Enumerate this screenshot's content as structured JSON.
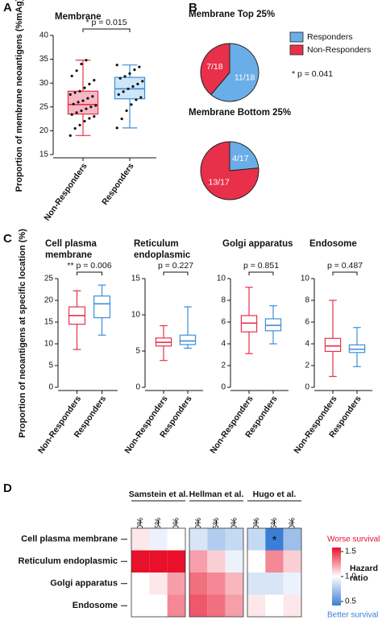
{
  "panel_labels": [
    "A",
    "B",
    "C",
    "D"
  ],
  "chart_data": [
    {
      "type": "box",
      "title": "Membrane",
      "ylabel": "Proportion of membrane neoantigens (%mAg)",
      "categories": [
        "Non-Responders",
        "Responders"
      ],
      "colors": [
        "#e8304a",
        "#3d8fd9"
      ],
      "box_fill": [
        "#f6b8c2",
        "#cfe5f8"
      ],
      "boxes": [
        {
          "min": 19,
          "q1": 23.5,
          "median": 25.5,
          "q3": 28.3,
          "max": 34.8
        },
        {
          "min": 20.6,
          "q1": 26.7,
          "median": 28.8,
          "q3": 31.2,
          "max": 33.8
        }
      ],
      "points": [
        [
          19,
          20.5,
          21.2,
          22,
          22.6,
          23,
          23.4,
          23.8,
          24.2,
          24.6,
          25,
          25.3,
          25.6,
          26,
          26.3,
          26.8,
          27.2,
          27.6,
          28,
          28.3,
          29,
          29.8,
          30.6,
          31.5,
          32.6,
          34,
          34.8
        ],
        [
          20.6,
          22.5,
          24.2,
          25.5,
          26.5,
          27,
          27.6,
          28.2,
          28.8,
          29.3,
          29.8,
          30.4,
          31,
          31.4,
          32,
          32.8,
          33.4,
          33.8
        ]
      ],
      "annotation": "* p = 0.015",
      "ylim": [
        15,
        40
      ],
      "yticks": [
        15,
        20,
        25,
        30,
        35,
        40
      ]
    },
    {
      "type": "pie",
      "title": "Membrane Top 25%",
      "categories": [
        "Responders",
        "Non-Responders"
      ],
      "colors": [
        "#6aaee8",
        "#e8304a"
      ],
      "values": [
        11,
        7
      ],
      "value_labels": [
        "11/18",
        "7/18"
      ],
      "annotation": "* p = 0.041"
    },
    {
      "type": "pie",
      "title": "Membrane Bottom 25%",
      "categories": [
        "Responders",
        "Non-Responders"
      ],
      "colors": [
        "#6aaee8",
        "#e8304a"
      ],
      "values": [
        4,
        13
      ],
      "value_labels": [
        "4/17",
        "13/17"
      ]
    },
    {
      "type": "box",
      "title": "Cell plasma membrane",
      "ylabel": "Proportion of neoantigens at specific location (%)",
      "categories": [
        "Non-Responders",
        "Responders"
      ],
      "colors": [
        "#e8304a",
        "#3d8fd9"
      ],
      "box_fill": [
        "#ffffff",
        "#ffffff"
      ],
      "boxes": [
        {
          "min": 8.7,
          "q1": 14.5,
          "median": 16.5,
          "q3": 18.5,
          "max": 22.2
        },
        {
          "min": 12,
          "q1": 16,
          "median": 19.2,
          "q3": 21,
          "max": 23.5
        }
      ],
      "annotation": "** p = 0.006",
      "ylim": [
        0,
        25
      ],
      "yticks": [
        0,
        5,
        10,
        15,
        20,
        25
      ]
    },
    {
      "type": "box",
      "title": "Reticulum endoplasmic",
      "categories": [
        "Non-Responders",
        "Responders"
      ],
      "colors": [
        "#e8304a",
        "#3d8fd9"
      ],
      "box_fill": [
        "#ffffff",
        "#ffffff"
      ],
      "boxes": [
        {
          "min": 3.7,
          "q1": 5.7,
          "median": 6.2,
          "q3": 6.8,
          "max": 8.5
        },
        {
          "min": 5.4,
          "q1": 5.9,
          "median": 6.4,
          "q3": 7.2,
          "max": 11.1
        }
      ],
      "annotation": "p = 0.227",
      "ylim": [
        0,
        15
      ],
      "yticks": [
        0,
        5,
        10,
        15
      ]
    },
    {
      "type": "box",
      "title": "Golgi apparatus",
      "categories": [
        "Non-Responders",
        "Responders"
      ],
      "colors": [
        "#e8304a",
        "#3d8fd9"
      ],
      "box_fill": [
        "#ffffff",
        "#ffffff"
      ],
      "boxes": [
        {
          "min": 3.1,
          "q1": 5.1,
          "median": 5.9,
          "q3": 6.6,
          "max": 9.2
        },
        {
          "min": 4,
          "q1": 5.2,
          "median": 5.7,
          "q3": 6.3,
          "max": 7.5
        }
      ],
      "annotation": "p = 0.851",
      "ylim": [
        0,
        10
      ],
      "yticks": [
        0,
        2,
        4,
        6,
        8,
        10
      ]
    },
    {
      "type": "box",
      "title": "Endosome",
      "categories": [
        "Non-Responders",
        "Responders"
      ],
      "colors": [
        "#e8304a",
        "#3d8fd9"
      ],
      "box_fill": [
        "#ffffff",
        "#ffffff"
      ],
      "boxes": [
        {
          "min": 1,
          "q1": 3.3,
          "median": 3.8,
          "q3": 4.5,
          "max": 8
        },
        {
          "min": 1.9,
          "q1": 3.2,
          "median": 3.5,
          "q3": 3.9,
          "max": 5.5
        }
      ],
      "annotation": "p = 0.487",
      "ylim": [
        0,
        10
      ],
      "yticks": [
        0,
        2,
        4,
        6,
        8,
        10
      ]
    },
    {
      "type": "heatmap",
      "column_groups": [
        {
          "name": "Samstein et al.",
          "columns": [
            "50%",
            "25%",
            "10%"
          ]
        },
        {
          "name": "Hellman et al.",
          "columns": [
            "50%",
            "25%",
            "10%"
          ]
        },
        {
          "name": "Hugo et al.",
          "columns": [
            "50%",
            "25%",
            "10%"
          ]
        }
      ],
      "rows": [
        "Cell plasma membrane",
        "Reticulum endoplasmic",
        "Golgi apparatus",
        "Endosome"
      ],
      "values": [
        [
          1.05,
          0.95,
          1.0,
          0.9,
          0.8,
          0.85,
          0.85,
          0.4,
          0.75
        ],
        [
          1.55,
          1.55,
          1.5,
          1.2,
          1.1,
          0.95,
          1.0,
          1.25,
          1.1
        ],
        [
          1.0,
          1.05,
          1.2,
          1.3,
          1.25,
          1.15,
          0.9,
          0.9,
          0.95
        ],
        [
          1.0,
          1.0,
          1.25,
          1.35,
          1.3,
          1.2,
          1.05,
          1.0,
          1.05
        ]
      ],
      "annotations": [
        {
          "text": "*",
          "row": 0,
          "column": 7
        }
      ],
      "clim": [
        0.5,
        1.5
      ],
      "cticks": [
        0.5,
        {
          "value": 1.0,
          "label": "1.0"
        },
        1.5
      ],
      "low_color": "#3a7fd5",
      "high_color": "#e8102a",
      "colorbar_label": "Hazard ratio",
      "high_label": "Worse survival",
      "low_label": "Better survival"
    }
  ]
}
